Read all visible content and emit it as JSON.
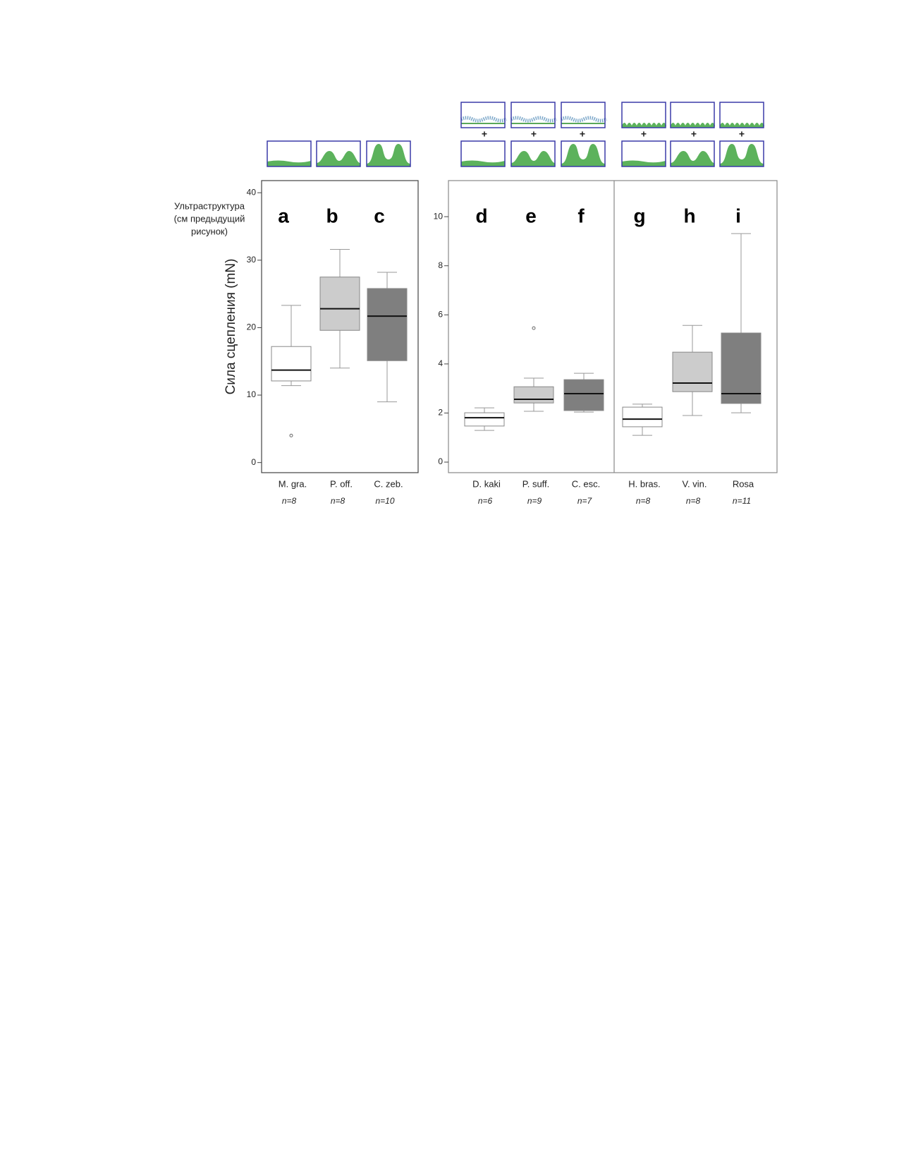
{
  "chart_data": [
    {
      "type": "box",
      "y_label": "Сила сцепления (mN)",
      "annotation": [
        "Ультраструктура",
        "(см предыдущий",
        "рисунок)"
      ],
      "categories": [
        "M. gra.",
        "P. off.",
        "C. zeb."
      ],
      "letters": [
        "a",
        "b",
        "c"
      ],
      "n_labels": [
        "n=8",
        "n=8",
        "n=10"
      ],
      "colors": [
        "#ffffff",
        "#cccccc",
        "#7f7f7f"
      ],
      "boxes": [
        {
          "whisker_low": 11.4,
          "q1": 12.1,
          "median": 13.7,
          "q3": 17.2,
          "whisker_high": 23.3,
          "outliers": [
            4.0
          ]
        },
        {
          "whisker_low": 14.0,
          "q1": 19.6,
          "median": 22.8,
          "q3": 27.5,
          "whisker_high": 31.6,
          "outliers": []
        },
        {
          "whisker_low": 9.0,
          "q1": 15.1,
          "median": 21.7,
          "q3": 25.8,
          "whisker_high": 28.2,
          "outliers": []
        }
      ],
      "ylim": [
        -1.5,
        41.8
      ],
      "yticks": [
        0,
        10,
        20,
        30,
        40
      ]
    },
    {
      "type": "box",
      "plus": "+",
      "categories": [
        "D. kaki",
        "P. suff.",
        "C. esc.",
        "H. bras.",
        "V. vin.",
        "Rosa"
      ],
      "letters": [
        "d",
        "e",
        "f",
        "g",
        "h",
        "i"
      ],
      "n_labels": [
        "n=6",
        "n=9",
        "n=7",
        "n=8",
        "n=8",
        "n=11"
      ],
      "colors": [
        "#ffffff",
        "#cccccc",
        "#7f7f7f",
        "#ffffff",
        "#cccccc",
        "#7f7f7f"
      ],
      "boxes": [
        {
          "whisker_low": 1.29,
          "q1": 1.47,
          "median": 1.81,
          "q3": 2.01,
          "whisker_high": 2.21,
          "outliers": []
        },
        {
          "whisker_low": 2.07,
          "q1": 2.41,
          "median": 2.56,
          "q3": 3.07,
          "whisker_high": 3.42,
          "outliers": [
            5.46
          ]
        },
        {
          "whisker_low": 2.04,
          "q1": 2.1,
          "median": 2.79,
          "q3": 3.36,
          "whisker_high": 3.62,
          "outliers": []
        },
        {
          "whisker_low": 1.09,
          "q1": 1.44,
          "median": 1.75,
          "q3": 2.24,
          "whisker_high": 2.36,
          "outliers": []
        },
        {
          "whisker_low": 1.9,
          "q1": 2.87,
          "median": 3.22,
          "q3": 4.48,
          "whisker_high": 5.57,
          "outliers": []
        },
        {
          "whisker_low": 2.01,
          "q1": 2.39,
          "median": 2.79,
          "q3": 5.26,
          "whisker_high": 9.31,
          "outliers": []
        }
      ],
      "ylim": [
        -0.43,
        11.47
      ],
      "yticks": [
        0,
        2,
        4,
        6,
        8,
        10
      ]
    }
  ]
}
